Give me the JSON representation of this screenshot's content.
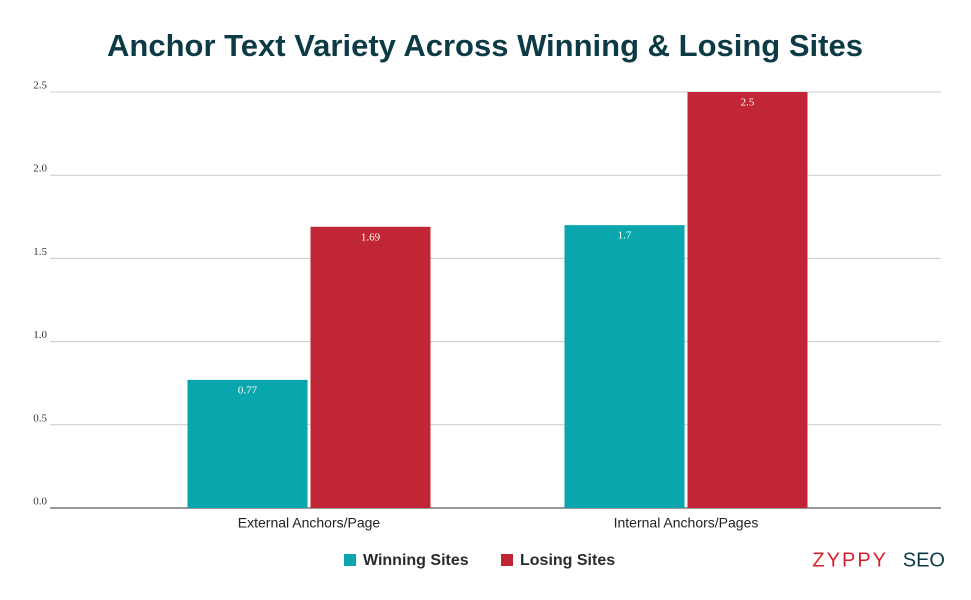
{
  "chart_data": {
    "type": "bar",
    "title": "Anchor Text Variety Across Winning & Losing Sites",
    "categories": [
      "External Anchors/Page",
      "Internal Anchors/Pages"
    ],
    "series": [
      {
        "name": "Winning Sites",
        "color": "#0aa6ae",
        "values": [
          0.77,
          1.7
        ]
      },
      {
        "name": "Losing Sites",
        "color": "#c02636",
        "values": [
          1.69,
          2.5
        ]
      }
    ],
    "ylim": [
      0,
      2.5
    ],
    "yticks": [
      {
        "value": 0,
        "label": "0.0"
      },
      0.5,
      {
        "value": 1,
        "label": "1.0"
      },
      1.5,
      {
        "value": 2,
        "label": "2.0"
      },
      2.5
    ],
    "grid": true,
    "legend": "bottom",
    "watermark": {
      "brand": "ZYPPY",
      "suffix": "SEO"
    }
  }
}
